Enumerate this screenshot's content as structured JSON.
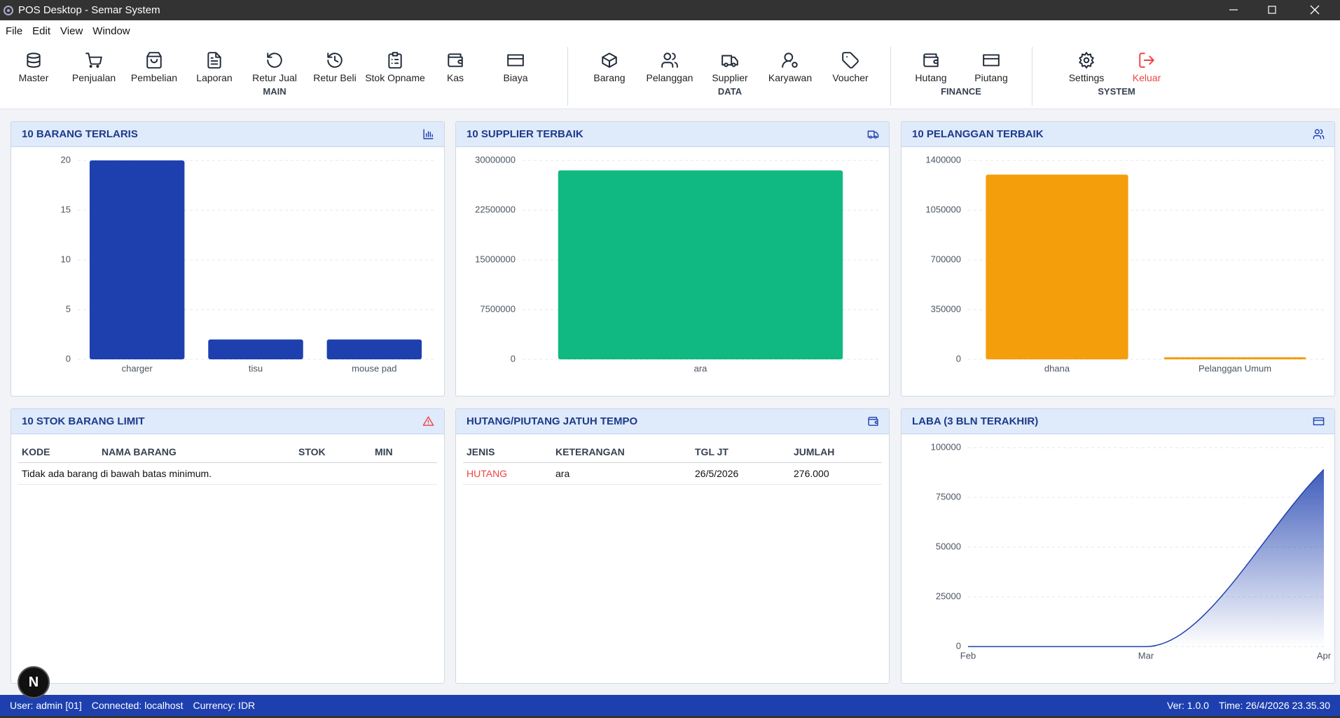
{
  "window": {
    "title": "POS Desktop - Semar System"
  },
  "menu": [
    "File",
    "Edit",
    "View",
    "Window"
  ],
  "toolbar": [
    {
      "label": "MAIN",
      "buttons": [
        "Master",
        "Penjualan",
        "Pembelian",
        "Laporan",
        "Retur Jual",
        "Retur Beli",
        "Stok Opname",
        "Kas",
        "Biaya"
      ]
    },
    {
      "label": "DATA",
      "buttons": [
        "Barang",
        "Pelanggan",
        "Supplier",
        "Karyawan",
        "Voucher"
      ]
    },
    {
      "label": "FINANCE",
      "buttons": [
        "Hutang",
        "Piutang"
      ]
    },
    {
      "label": "SYSTEM",
      "buttons": [
        "Settings",
        "Keluar"
      ]
    }
  ],
  "chart_data": [
    {
      "type": "bar",
      "title": "10 BARANG TERLARIS",
      "categories": [
        "charger",
        "tisu",
        "mouse pad"
      ],
      "values": [
        20,
        2,
        2
      ],
      "color": "#1e40af",
      "ylim": [
        0,
        20
      ],
      "yticks": [
        0,
        5,
        10,
        15,
        20
      ],
      "grid": true
    },
    {
      "type": "bar",
      "title": "10 SUPPLIER TERBAIK",
      "categories": [
        "ara"
      ],
      "values": [
        28500000
      ],
      "color": "#10b981",
      "ylim": [
        0,
        30000000
      ],
      "yticks": [
        0,
        7500000,
        15000000,
        22500000,
        30000000
      ],
      "grid": true
    },
    {
      "type": "bar",
      "title": "10 PELANGGAN TERBAIK",
      "categories": [
        "dhana",
        "Pelanggan Umum"
      ],
      "values": [
        1300000,
        15000
      ],
      "color": "#f59e0b",
      "ylim": [
        0,
        1400000
      ],
      "yticks": [
        0,
        350000,
        700000,
        1050000,
        1400000
      ],
      "grid": true
    },
    {
      "type": "area",
      "title": "LABA (3 BLN TERAKHIR)",
      "categories": [
        "Feb",
        "Mar",
        "Apr"
      ],
      "values": [
        0,
        0,
        89000
      ],
      "color": "#1e40af",
      "ylim": [
        0,
        100000
      ],
      "yticks": [
        0,
        25000,
        50000,
        75000,
        100000
      ],
      "grid": true
    }
  ],
  "stock_table": {
    "title": "10 STOK BARANG LIMIT",
    "columns": [
      "KODE",
      "NAMA BARANG",
      "STOK",
      "MIN"
    ],
    "empty_message": "Tidak ada barang di bawah batas minimum."
  },
  "due_table": {
    "title": "HUTANG/PIUTANG JATUH TEMPO",
    "columns": [
      "JENIS",
      "KETERANGAN",
      "TGL JT",
      "JUMLAH"
    ],
    "rows": [
      [
        "HUTANG",
        "ara",
        "26/5/2026",
        "276.000"
      ]
    ]
  },
  "status_bar": {
    "left": [
      "User: admin [01]",
      "Connected: localhost",
      "Currency: IDR"
    ],
    "right": [
      "Ver: 1.0.0",
      "Time: 26/4/2026 23.35.30"
    ]
  },
  "dev_badge": "N"
}
